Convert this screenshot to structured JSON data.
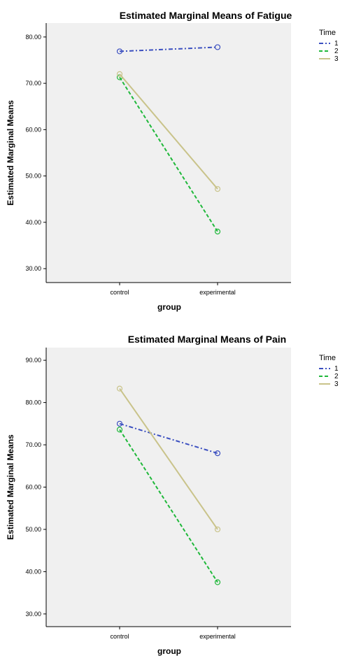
{
  "chart_data": [
    {
      "type": "line",
      "title": "Estimated Marginal Means of Fatigue",
      "xlabel": "group",
      "ylabel": "Estimated Marginal Means",
      "categories": [
        "control",
        "experimental"
      ],
      "ylim": [
        27,
        83
      ],
      "yticks": [
        "30.00",
        "40.00",
        "50.00",
        "60.00",
        "70.00",
        "80.00"
      ],
      "legend_title": "Time",
      "legend_position": "right",
      "grid": false,
      "series": [
        {
          "name": "1",
          "values": [
            76.9,
            77.8
          ],
          "color": "#3b4fc0",
          "dash": "6,3,2,3"
        },
        {
          "name": "2",
          "values": [
            71.3,
            38.0
          ],
          "color": "#1fb83a",
          "dash": "5,3"
        },
        {
          "name": "3",
          "values": [
            72.0,
            47.2
          ],
          "color": "#c9c38a",
          "dash": ""
        }
      ]
    },
    {
      "type": "line",
      "title": "Estimated Marginal Means of Pain",
      "xlabel": "group",
      "ylabel": "Estimated Marginal Means",
      "categories": [
        "control",
        "experimental"
      ],
      "ylim": [
        27,
        93
      ],
      "yticks": [
        "30.00",
        "40.00",
        "50.00",
        "60.00",
        "70.00",
        "80.00",
        "90.00"
      ],
      "legend_title": "Time",
      "legend_position": "right",
      "grid": false,
      "series": [
        {
          "name": "1",
          "values": [
            75.0,
            68.0
          ],
          "color": "#3b4fc0",
          "dash": "6,3,2,3"
        },
        {
          "name": "2",
          "values": [
            73.6,
            37.5
          ],
          "color": "#1fb83a",
          "dash": "5,3"
        },
        {
          "name": "3",
          "values": [
            83.3,
            50.0
          ],
          "color": "#c9c38a",
          "dash": ""
        }
      ]
    }
  ]
}
